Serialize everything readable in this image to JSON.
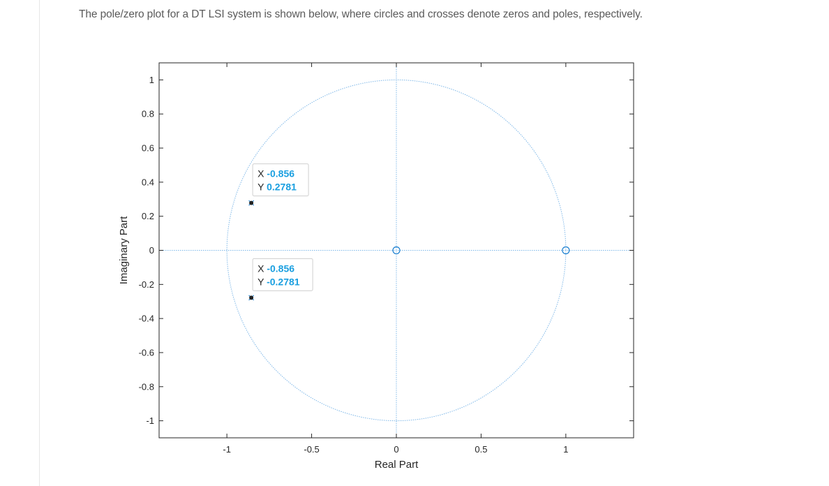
{
  "question_text": "The pole/zero plot for a DT LSI system is shown below, where circles and crosses denote zeros and poles, respectively.",
  "chart_data": {
    "type": "scatter",
    "title": "",
    "xlabel": "Real Part",
    "ylabel": "Imaginary Part",
    "xlim": [
      -1.4,
      1.4
    ],
    "ylim": [
      -1.1,
      1.1
    ],
    "x_ticks": [
      -1,
      -0.5,
      0,
      0.5,
      1
    ],
    "x_tick_labels": [
      "-1",
      "-0.5",
      "0",
      "0.5",
      "1"
    ],
    "y_ticks": [
      1,
      0.8,
      0.6,
      0.4,
      0.2,
      0,
      -0.2,
      -0.4,
      -0.6,
      -0.8,
      -1
    ],
    "y_tick_labels": [
      "1",
      "0.8",
      "0.6",
      "0.4",
      "0.2",
      "0",
      "-0.2",
      "-0.4",
      "-0.6",
      "-0.8",
      "-1"
    ],
    "unit_circle": true,
    "grid": false,
    "zeros": [
      {
        "x": 0,
        "y": 0
      },
      {
        "x": 1,
        "y": 0
      }
    ],
    "poles": [
      {
        "x": -0.856,
        "y": 0.2781
      },
      {
        "x": -0.856,
        "y": -0.2781
      }
    ],
    "datatips": [
      {
        "x_key": "X",
        "x_value": "-0.856",
        "y_key": "Y",
        "y_value": "0.2781"
      },
      {
        "x_key": "X",
        "x_value": "-0.856",
        "y_key": "Y",
        "y_value": "-0.2781"
      }
    ],
    "colors": {
      "marker": "#1a7fd0",
      "circle": "#7fb8e8",
      "datatip_value": "#1a9fe0",
      "axes": "#262626"
    }
  }
}
